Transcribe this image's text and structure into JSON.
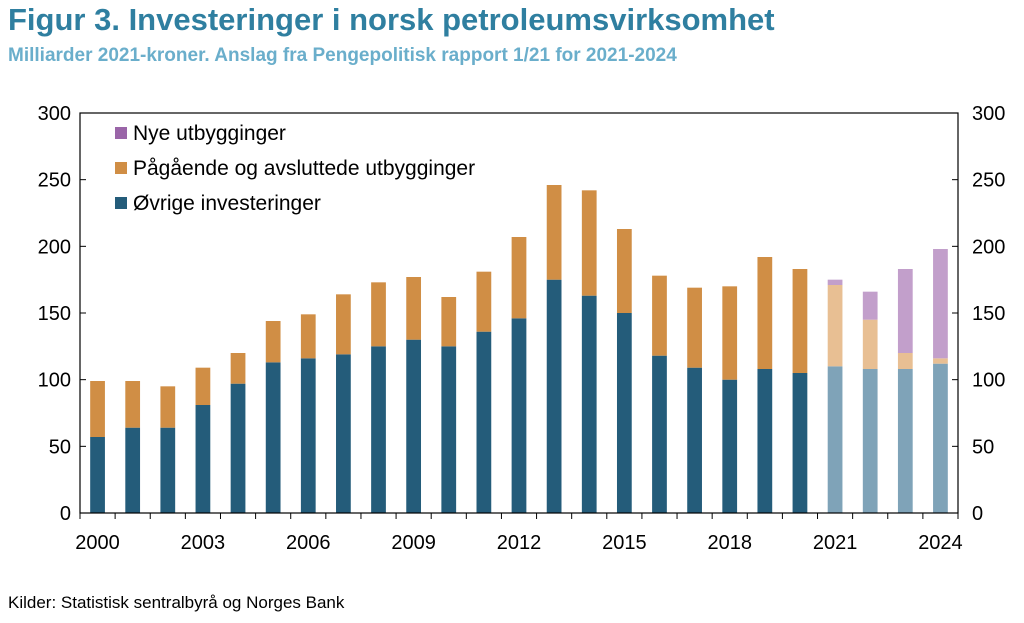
{
  "title": "Figur 3. Investeringer i norsk petroleumsvirksomhet",
  "subtitle": "Milliarder 2021-kroner. Anslag fra Pengepolitisk rapport 1/21 for 2021-2024",
  "source": "Kilder: Statistisk sentralbyrå og Norges Bank",
  "chart_data": {
    "type": "bar",
    "stacked": true,
    "categories": [
      2000,
      2001,
      2002,
      2003,
      2004,
      2005,
      2006,
      2007,
      2008,
      2009,
      2010,
      2011,
      2012,
      2013,
      2014,
      2015,
      2016,
      2017,
      2018,
      2019,
      2020,
      2021,
      2022,
      2023,
      2024
    ],
    "x_tick_labels": [
      "2000",
      "2003",
      "2006",
      "2009",
      "2012",
      "2015",
      "2018",
      "2021",
      "2024"
    ],
    "x_tick_years": [
      2000,
      2003,
      2006,
      2009,
      2012,
      2015,
      2018,
      2021,
      2024
    ],
    "forecast_from": 2021,
    "ylim": [
      0,
      300
    ],
    "y_ticks": [
      0,
      50,
      100,
      150,
      200,
      250,
      300
    ],
    "legend_position": "top-left",
    "series": [
      {
        "name": "Øvrige investeringer",
        "color": "#245c7a",
        "forecast_color": "#7fa3b8",
        "values": [
          57,
          64,
          64,
          81,
          97,
          113,
          116,
          119,
          125,
          130,
          125,
          136,
          146,
          175,
          163,
          150,
          118,
          109,
          100,
          108,
          105,
          110,
          108,
          108,
          112
        ]
      },
      {
        "name": "Pågående og avsluttede utbygginger",
        "color": "#d08e45",
        "forecast_color": "#e8bf93",
        "values": [
          42,
          35,
          31,
          28,
          23,
          31,
          33,
          45,
          48,
          47,
          37,
          45,
          61,
          71,
          79,
          63,
          60,
          60,
          70,
          84,
          78,
          61,
          37,
          12,
          4
        ]
      },
      {
        "name": "Nye utbygginger",
        "color": "#9a65a8",
        "forecast_color": "#c29fcb",
        "values": [
          0,
          0,
          0,
          0,
          0,
          0,
          0,
          0,
          0,
          0,
          0,
          0,
          0,
          0,
          0,
          0,
          0,
          0,
          0,
          0,
          0,
          4,
          21,
          63,
          82
        ]
      }
    ]
  }
}
